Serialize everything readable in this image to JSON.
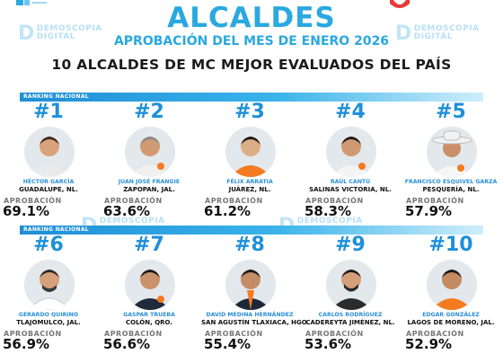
{
  "header": {
    "title": "ALCALDES",
    "subtitle": "APROBACIÓN DEL MES DE ENERO 2026",
    "headline": "10 ALCALDES DE MC MEJOR EVALUADOS DEL PAÍS"
  },
  "watermark": {
    "line1": "DEMOSCOPIA",
    "line2": "DIGITAL",
    "letter": "D"
  },
  "bands": {
    "row1": "RANKING NACIONAL",
    "row2": "RANKING NACIONAL"
  },
  "approval_label": "APROBACIÓN",
  "mayors": [
    {
      "rank": "#1",
      "name": "HÉCTOR GARCÍA",
      "city": "GUADALUPE, NL.",
      "approval": "69.1%"
    },
    {
      "rank": "#2",
      "name": "JUAN JOSÉ FRANGIE",
      "city": "ZAPOPAN, JAL.",
      "approval": "63.6%"
    },
    {
      "rank": "#3",
      "name": "FÉLIX ARRATIA",
      "city": "JUÁREZ, NL.",
      "approval": "61.2%"
    },
    {
      "rank": "#4",
      "name": "RAÚL CANTÚ",
      "city": "SALINAS VICTORIA, NL.",
      "approval": "58.3%"
    },
    {
      "rank": "#5",
      "name": "FRANCISCO ESQUIVEL GARZA",
      "city": "PESQUERÍA, NL.",
      "approval": "57.9%"
    },
    {
      "rank": "#6",
      "name": "GERARDO QUIRINO",
      "city": "TLAJOMULCO, JAL.",
      "approval": "56.9%"
    },
    {
      "rank": "#7",
      "name": "GASPAR TRUEBA",
      "city": "COLÓN, QRO.",
      "approval": "56.6%"
    },
    {
      "rank": "#8",
      "name": "DAVID MEDINA HERNÁNDEZ",
      "city": "SAN AGUSTÍN TLAXIACA, HGO.",
      "approval": "55.4%"
    },
    {
      "rank": "#9",
      "name": "CARLOS RODRÍGUEZ",
      "city": "CADEREYTA JIMÉNEZ, NL.",
      "approval": "53.6%"
    },
    {
      "rank": "#10",
      "name": "EDGAR GONZÁLEZ",
      "city": "LAGOS DE MORENO, JAL.",
      "approval": "52.9%"
    }
  ],
  "colors": {
    "accent": "#2aa8e0",
    "rank": "#1e90d9",
    "mc_orange": "#f47b20"
  }
}
